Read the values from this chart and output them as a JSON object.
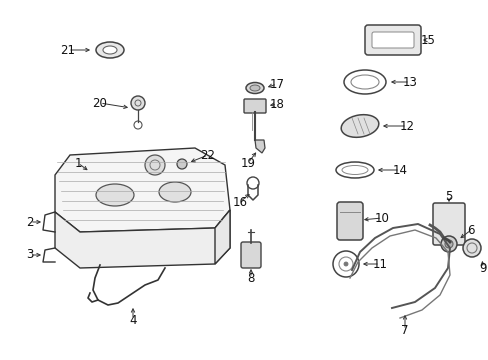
{
  "background_color": "#ffffff",
  "figsize": [
    4.89,
    3.6
  ],
  "dpi": 100,
  "line_color": "#333333",
  "label_fontsize": 8.5
}
